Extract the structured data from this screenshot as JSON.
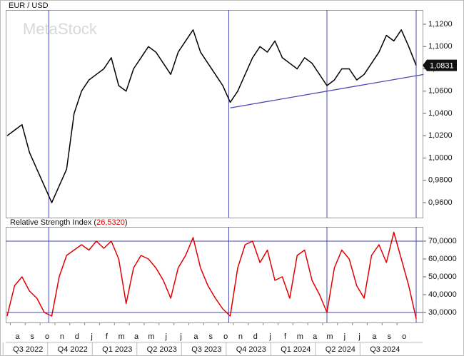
{
  "chart_data": [
    {
      "type": "line",
      "title": "EUR / USD",
      "watermark": "MetaStock",
      "color": "#000000",
      "values": [
        1.02,
        1.025,
        1.03,
        1.005,
        0.99,
        0.975,
        0.96,
        0.975,
        0.99,
        1.04,
        1.06,
        1.07,
        1.075,
        1.08,
        1.09,
        1.065,
        1.06,
        1.08,
        1.09,
        1.1,
        1.095,
        1.085,
        1.075,
        1.095,
        1.105,
        1.115,
        1.095,
        1.085,
        1.075,
        1.065,
        1.05,
        1.06,
        1.075,
        1.09,
        1.1,
        1.095,
        1.105,
        1.09,
        1.085,
        1.08,
        1.09,
        1.085,
        1.075,
        1.065,
        1.07,
        1.08,
        1.08,
        1.07,
        1.075,
        1.085,
        1.095,
        1.11,
        1.105,
        1.115,
        1.1,
        1.0831
      ],
      "last_value": 1.0831,
      "last_value_label": "1,0831",
      "ylim": [
        0.9466,
        1.1328
      ],
      "yticks": [
        {
          "value": 1.12,
          "label": "1,1200"
        },
        {
          "value": 1.1,
          "label": "1,1000"
        },
        {
          "value": 1.08,
          "label": "1,0800"
        },
        {
          "value": 1.06,
          "label": "1,0600"
        },
        {
          "value": 1.04,
          "label": "1,0400"
        },
        {
          "value": 1.02,
          "label": "1,0200"
        },
        {
          "value": 1.0,
          "label": "1,0000"
        },
        {
          "value": 0.98,
          "label": "0,9800"
        },
        {
          "value": 0.96,
          "label": "0,9600"
        }
      ],
      "trendline": {
        "x": [
          30,
          56
        ],
        "y": [
          1.045,
          1.075
        ],
        "color": "#4a4ab0"
      }
    },
    {
      "type": "line",
      "title": "Relative Strength Index",
      "brackets": [
        "(",
        ")"
      ],
      "value_label": "26,5320",
      "value_label_color": "#e00000",
      "color": "#e00000",
      "values": [
        28,
        45,
        50,
        42,
        38,
        30,
        28,
        50,
        62,
        65,
        68,
        65,
        70,
        66,
        70,
        60,
        35,
        55,
        62,
        60,
        55,
        48,
        38,
        55,
        62,
        72,
        55,
        45,
        38,
        32,
        28,
        55,
        68,
        70,
        58,
        65,
        48,
        50,
        38,
        62,
        65,
        48,
        40,
        30,
        55,
        65,
        60,
        45,
        38,
        62,
        68,
        58,
        75,
        60,
        45,
        26.532
      ],
      "ylim": [
        24.4,
        78
      ],
      "yticks": [
        {
          "value": 70,
          "label": "70,0000"
        },
        {
          "value": 60,
          "label": "60,0000"
        },
        {
          "value": 50,
          "label": "50,0000"
        },
        {
          "value": 40,
          "label": "40,0000"
        },
        {
          "value": 30,
          "label": "30,0000"
        }
      ],
      "levels": [
        70,
        30
      ],
      "categories": [
        null,
        "a",
        null,
        "s",
        null,
        "o",
        null,
        "n",
        null,
        "d",
        null,
        "j",
        null,
        "f",
        null,
        "m",
        null,
        "a",
        null,
        "m",
        null,
        "j",
        null,
        "j",
        null,
        "a",
        null,
        "s",
        null,
        "o",
        null,
        "n",
        null,
        "d",
        null,
        "j",
        null,
        "f",
        null,
        "m",
        null,
        "a",
        null,
        "m",
        null,
        "j",
        null,
        "j",
        null,
        "a",
        null,
        "s",
        null,
        "o",
        null,
        null
      ],
      "quarters": [
        null,
        null,
        null,
        "Q3 2022",
        null,
        null,
        null,
        null,
        null,
        "Q4 2022",
        null,
        null,
        null,
        null,
        null,
        "Q1 2023",
        null,
        null,
        null,
        null,
        null,
        "Q2 2023",
        null,
        null,
        null,
        null,
        null,
        "Q3 2023",
        null,
        null,
        null,
        null,
        null,
        "Q4 2023",
        null,
        null,
        null,
        null,
        null,
        "Q1 2024",
        null,
        null,
        null,
        null,
        null,
        "Q2 2024",
        null,
        null,
        null,
        null,
        null,
        "Q3 2024",
        null,
        null,
        null,
        null
      ],
      "vertical_lines": [
        5.6,
        29.8,
        43.0,
        55.0
      ]
    }
  ]
}
